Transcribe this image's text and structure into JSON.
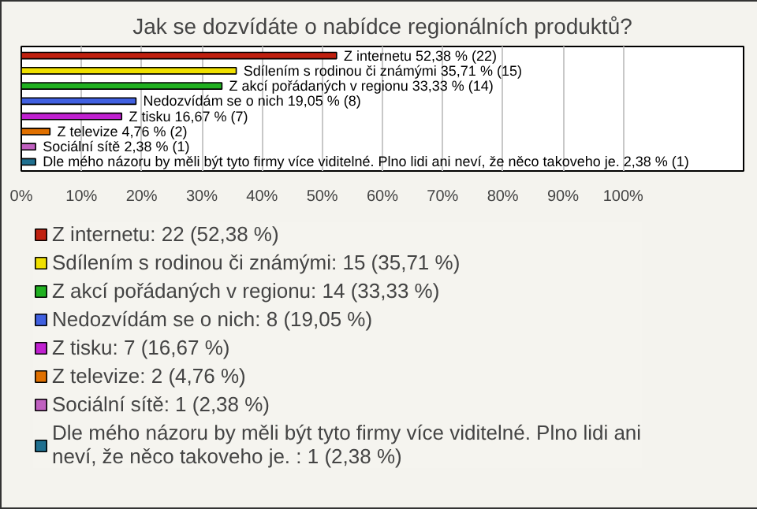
{
  "chart_data": {
    "type": "bar",
    "orientation": "horizontal",
    "title": "Jak se dozvídáte o nabídce regionálních produktů?",
    "categories": [
      "Z internetu",
      "Sdílením s rodinou či známými",
      "Z akcí pořádaných v regionu",
      "Nedozvídám se o nich",
      "Z tisku",
      "Z televize",
      "Sociální sítě",
      "Dle mého názoru by měli být tyto firmy více viditelné. Plno lidi ani neví, že něco takoveho je. "
    ],
    "series": [
      {
        "name": "Z internetu: 22 (52,38 %)",
        "color": "#c0200f",
        "values": [
          52.38,
          null,
          null,
          null,
          null,
          null,
          null,
          null
        ],
        "value_labels": [
          "52,38 % (22)",
          null,
          null,
          null,
          null,
          null,
          null,
          null
        ]
      },
      {
        "name": "Sdílením s rodinou či známými: 15 (35,71 %)",
        "color": "#f0e000",
        "values": [
          null,
          35.71,
          null,
          null,
          null,
          null,
          null,
          null
        ],
        "value_labels": [
          null,
          "35,71 % (15)",
          null,
          null,
          null,
          null,
          null,
          null
        ]
      },
      {
        "name": "Z akcí pořádaných v regionu: 14 (33,33 %)",
        "color": "#20b020",
        "values": [
          null,
          null,
          33.33,
          null,
          null,
          null,
          null,
          null
        ],
        "value_labels": [
          null,
          null,
          "33,33 % (14)",
          null,
          null,
          null,
          null,
          null
        ]
      },
      {
        "name": "Nedozvídám se o nich: 8 (19,05 %)",
        "color": "#4060e0",
        "values": [
          null,
          null,
          null,
          19.05,
          null,
          null,
          null,
          null
        ],
        "value_labels": [
          null,
          null,
          null,
          "19,05 % (8)",
          null,
          null,
          null,
          null
        ]
      },
      {
        "name": "Z tisku: 7 (16,67 %)",
        "color": "#c020d0",
        "values": [
          null,
          null,
          null,
          null,
          16.67,
          null,
          null,
          null
        ],
        "value_labels": [
          null,
          null,
          null,
          null,
          "16,67 % (7)",
          null,
          null,
          null
        ]
      },
      {
        "name": "Z televize: 2 (4,76 %)",
        "color": "#e07000",
        "values": [
          null,
          null,
          null,
          null,
          null,
          4.76,
          null,
          null
        ],
        "value_labels": [
          null,
          null,
          null,
          null,
          null,
          "4,76 % (2)",
          null,
          null
        ]
      },
      {
        "name": "Sociální sítě: 1 (2,38 %)",
        "color": "#c060c0",
        "values": [
          null,
          null,
          null,
          null,
          null,
          null,
          2.38,
          null
        ],
        "value_labels": [
          null,
          null,
          null,
          null,
          null,
          null,
          "2,38 % (1)",
          null
        ]
      },
      {
        "name": "Dle mého názoru by měli být tyto firmy více viditelné. Plno lidi ani neví, že něco takoveho je. : 1 (2,38 %)",
        "color": "#207090",
        "values": [
          null,
          null,
          null,
          null,
          null,
          null,
          null,
          2.38
        ],
        "value_labels": [
          null,
          null,
          null,
          null,
          null,
          null,
          null,
          "2,38 % (1)"
        ]
      }
    ],
    "xlim": [
      0,
      120
    ],
    "xticks": [
      {
        "value": 0,
        "label": "0%"
      },
      {
        "value": 10,
        "label": "10%"
      },
      {
        "value": 20,
        "label": "20%"
      },
      {
        "value": 30,
        "label": "30%"
      },
      {
        "value": 40,
        "label": "40%"
      },
      {
        "value": 50,
        "label": "50%"
      },
      {
        "value": 60,
        "label": "60%"
      },
      {
        "value": 70,
        "label": "70%"
      },
      {
        "value": 80,
        "label": "80%"
      },
      {
        "value": 90,
        "label": "90%"
      },
      {
        "value": 100,
        "label": "100%"
      }
    ],
    "grid": "x",
    "legend": "bottom",
    "tick_labels": "x"
  }
}
